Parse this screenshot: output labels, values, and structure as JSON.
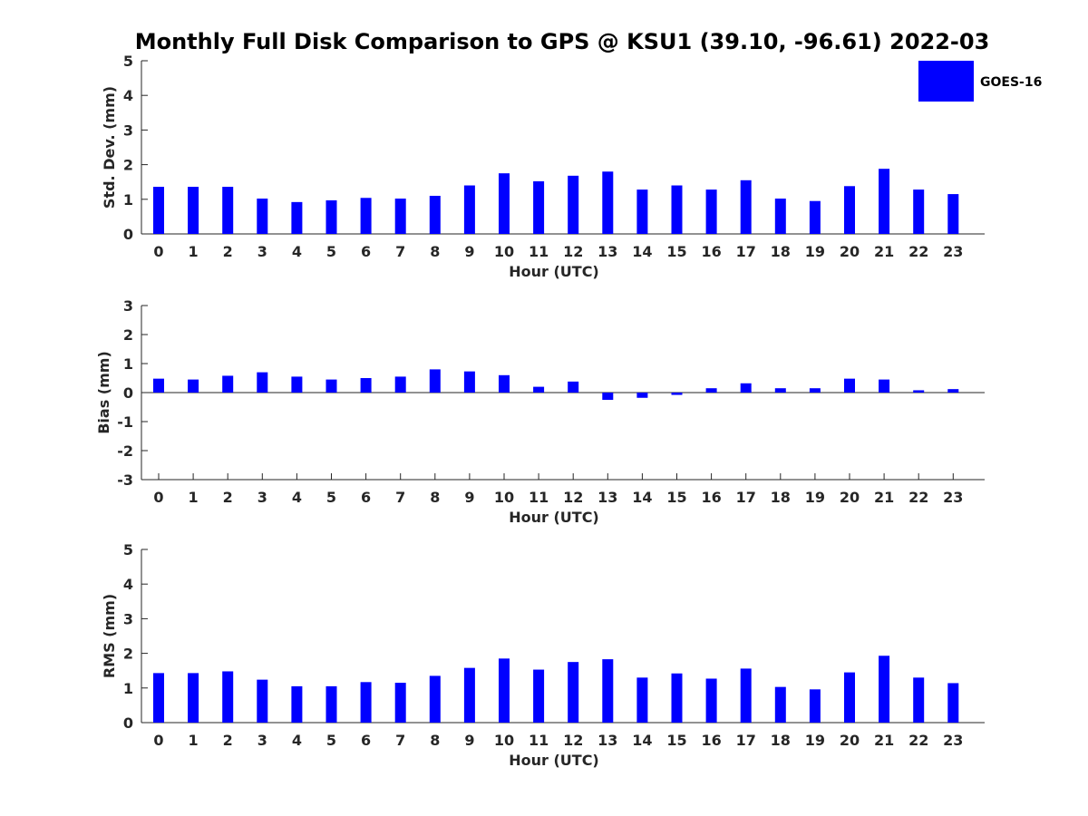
{
  "figure": {
    "title": "Monthly Full Disk Comparison to GPS @ KSU1 (39.10, -96.61) 2022-03",
    "bar_color": "#0000ff",
    "legend": {
      "label": "GOES-16",
      "color": "#0000ff",
      "placement": "top-right"
    }
  },
  "chart_data": [
    {
      "type": "bar",
      "series": [
        {
          "name": "GOES-16",
          "values": [
            1.36,
            1.36,
            1.36,
            1.02,
            0.92,
            0.97,
            1.04,
            1.02,
            1.1,
            1.4,
            1.75,
            1.52,
            1.68,
            1.8,
            1.28,
            1.4,
            1.28,
            1.55,
            1.02,
            0.95,
            1.38,
            1.88,
            1.28,
            1.15
          ]
        }
      ],
      "categories": [
        "0",
        "1",
        "2",
        "3",
        "4",
        "5",
        "6",
        "7",
        "8",
        "9",
        "10",
        "11",
        "12",
        "13",
        "14",
        "15",
        "16",
        "17",
        "18",
        "19",
        "20",
        "21",
        "22",
        "23"
      ],
      "xlabel": "Hour (UTC)",
      "ylabel": "Std. Dev. (mm)",
      "ylim": [
        0,
        5
      ],
      "yticks": [
        "0",
        "1",
        "2",
        "3",
        "4",
        "5"
      ],
      "grid": false
    },
    {
      "type": "bar",
      "series": [
        {
          "name": "GOES-16",
          "values": [
            0.48,
            0.45,
            0.58,
            0.7,
            0.55,
            0.45,
            0.5,
            0.55,
            0.8,
            0.73,
            0.6,
            0.2,
            0.38,
            -0.25,
            -0.18,
            -0.08,
            0.15,
            0.32,
            0.15,
            0.15,
            0.48,
            0.45,
            0.08,
            0.12
          ]
        }
      ],
      "categories": [
        "0",
        "1",
        "2",
        "3",
        "4",
        "5",
        "6",
        "7",
        "8",
        "9",
        "10",
        "11",
        "12",
        "13",
        "14",
        "15",
        "16",
        "17",
        "18",
        "19",
        "20",
        "21",
        "22",
        "23"
      ],
      "xlabel": "Hour (UTC)",
      "ylabel": "Bias (mm)",
      "ylim": [
        -3,
        3
      ],
      "yticks": [
        "-3",
        "-2",
        "-1",
        "0",
        "1",
        "2",
        "3"
      ],
      "grid": false
    },
    {
      "type": "bar",
      "series": [
        {
          "name": "GOES-16",
          "values": [
            1.43,
            1.43,
            1.48,
            1.24,
            1.05,
            1.05,
            1.17,
            1.15,
            1.35,
            1.58,
            1.85,
            1.53,
            1.75,
            1.83,
            1.3,
            1.42,
            1.27,
            1.56,
            1.03,
            0.96,
            1.45,
            1.93,
            1.3,
            1.14
          ]
        }
      ],
      "categories": [
        "0",
        "1",
        "2",
        "3",
        "4",
        "5",
        "6",
        "7",
        "8",
        "9",
        "10",
        "11",
        "12",
        "13",
        "14",
        "15",
        "16",
        "17",
        "18",
        "19",
        "20",
        "21",
        "22",
        "23"
      ],
      "xlabel": "Hour (UTC)",
      "ylabel": "RMS (mm)",
      "ylim": [
        0,
        5
      ],
      "yticks": [
        "0",
        "1",
        "2",
        "3",
        "4",
        "5"
      ],
      "grid": false
    }
  ]
}
